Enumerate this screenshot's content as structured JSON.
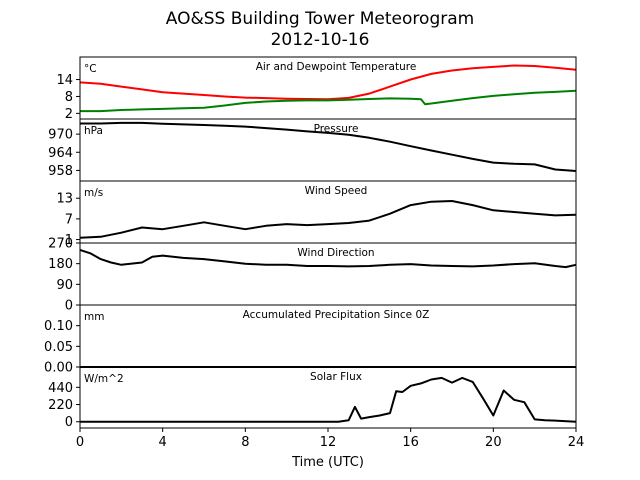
{
  "figure": {
    "title": "AO&SS Building Tower Meteorogram",
    "subtitle": "2012-10-16",
    "xlabel": "Time (UTC)",
    "xticks": [
      "0",
      "4",
      "8",
      "12",
      "16",
      "20",
      "24"
    ]
  },
  "chart_data": [
    {
      "type": "line",
      "title": "Air and Dewpoint Temperature",
      "unit": "°C",
      "ylim": [
        0,
        22
      ],
      "yticks": [
        2,
        8,
        14
      ],
      "series": [
        {
          "color": "#ff0000",
          "x": [
            0,
            1,
            2,
            3,
            4,
            5,
            6,
            7,
            8,
            9,
            10,
            11,
            12,
            13,
            14,
            15,
            16,
            17,
            18,
            19,
            20,
            21,
            22,
            23,
            24
          ],
          "values": [
            13,
            12.5,
            11.5,
            10.5,
            9.5,
            9,
            8.5,
            8,
            7.6,
            7.4,
            7.2,
            7.1,
            7,
            7.5,
            9,
            11.5,
            14,
            16,
            17.2,
            18,
            18.5,
            19,
            18.8,
            18.2,
            17.5
          ]
        },
        {
          "color": "#008000",
          "x": [
            0,
            1,
            2,
            3,
            4,
            5,
            6,
            7,
            8,
            9,
            10,
            11,
            12,
            13,
            14,
            15,
            16,
            16.5,
            16.7,
            17,
            18,
            19,
            20,
            21,
            22,
            23,
            24
          ],
          "values": [
            2.8,
            2.8,
            3.2,
            3.4,
            3.6,
            3.8,
            4,
            4.8,
            5.7,
            6.2,
            6.5,
            6.6,
            6.6,
            6.8,
            7.1,
            7.3,
            7.2,
            7,
            5.2,
            5.5,
            6.5,
            7.4,
            8.2,
            8.8,
            9.3,
            9.6,
            10
          ]
        }
      ]
    },
    {
      "type": "line",
      "title": "Pressure",
      "unit": "hPa",
      "ylim": [
        954.5,
        975
      ],
      "yticks": [
        958,
        964,
        970
      ],
      "series": [
        {
          "color": "#000000",
          "x": [
            0,
            1,
            2,
            3,
            4,
            5,
            6,
            7,
            8,
            9,
            10,
            11,
            12,
            13,
            14,
            15,
            16,
            17,
            18,
            19,
            20,
            21,
            22,
            23,
            24
          ],
          "values": [
            973.5,
            973.5,
            973.7,
            973.7,
            973.4,
            973.2,
            973,
            972.8,
            972.5,
            972,
            971.5,
            970.9,
            970.4,
            969.8,
            968.8,
            967.5,
            966,
            964.6,
            963.2,
            961.8,
            960.6,
            960.2,
            960,
            958.3,
            957.8
          ]
        }
      ]
    },
    {
      "type": "line",
      "title": "Wind Speed",
      "unit": "m/s",
      "ylim": [
        0,
        18
      ],
      "yticks": [
        1,
        7,
        13
      ],
      "series": [
        {
          "color": "#000000",
          "x": [
            0,
            1,
            2,
            3,
            4,
            5,
            6,
            7,
            8,
            9,
            10,
            11,
            12,
            13,
            14,
            15,
            16,
            17,
            18,
            19,
            20,
            21,
            22,
            23,
            24
          ],
          "values": [
            1.5,
            1.8,
            3,
            4.5,
            4,
            5,
            6,
            5,
            4,
            5,
            5.5,
            5.2,
            5.5,
            5.8,
            6.5,
            8.5,
            11,
            12,
            12.2,
            11,
            9.5,
            9,
            8.5,
            8,
            8.2
          ]
        }
      ]
    },
    {
      "type": "line",
      "title": "Wind Direction",
      "ylim": [
        0,
        270
      ],
      "yticks": [
        0,
        90,
        180,
        270
      ],
      "series": [
        {
          "color": "#000000",
          "x": [
            0,
            0.5,
            1,
            1.5,
            2,
            3,
            3.5,
            4,
            5,
            6,
            7,
            8,
            9,
            10,
            11,
            12,
            13,
            14,
            15,
            16,
            17,
            18,
            19,
            20,
            21,
            22,
            23,
            23.5,
            24
          ],
          "values": [
            240,
            225,
            200,
            185,
            175,
            185,
            210,
            215,
            205,
            200,
            190,
            180,
            175,
            175,
            170,
            170,
            168,
            170,
            175,
            178,
            172,
            170,
            168,
            172,
            178,
            182,
            170,
            165,
            175
          ]
        }
      ]
    },
    {
      "type": "line",
      "title": "Accumulated Precipitation Since 0Z",
      "unit": "mm",
      "ylim": [
        0,
        0.15
      ],
      "yticks": [
        0.0,
        0.05,
        0.1
      ],
      "ytick_labels": [
        "0.00",
        "0.05",
        "0.10"
      ],
      "series": [
        {
          "color": "#000000",
          "x": [
            0,
            24
          ],
          "values": [
            0,
            0
          ]
        }
      ]
    },
    {
      "type": "line",
      "title": "Solar Flux",
      "unit": "W/m^2",
      "ylim": [
        -80,
        700
      ],
      "yticks": [
        0,
        220,
        440
      ],
      "series": [
        {
          "color": "#000000",
          "x": [
            0,
            12.5,
            13,
            13.3,
            13.6,
            14,
            14.5,
            15,
            15.3,
            15.6,
            16,
            16.5,
            17,
            17.5,
            18,
            18.5,
            19,
            19.5,
            20,
            20.5,
            21,
            21.5,
            22,
            22.5,
            23,
            24
          ],
          "values": [
            0,
            0,
            20,
            190,
            40,
            60,
            80,
            110,
            390,
            380,
            460,
            490,
            540,
            560,
            500,
            560,
            510,
            300,
            80,
            400,
            280,
            250,
            30,
            20,
            15,
            0
          ]
        }
      ]
    }
  ]
}
